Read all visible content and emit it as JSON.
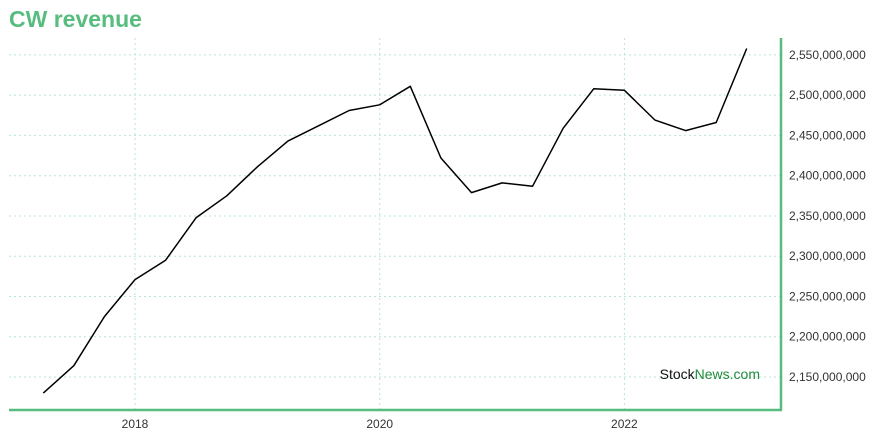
{
  "title": "CW revenue",
  "colors": {
    "accent": "#56bd7f",
    "grid": "#b9e6cc",
    "line": "#000000",
    "watermark_dark": "#111111",
    "watermark_green": "#1e8a3c"
  },
  "watermark": {
    "part1": "Stock",
    "part2": "News.com"
  },
  "chart_data": {
    "type": "line",
    "title": "CW revenue",
    "xlabel": "",
    "ylabel": "",
    "x_ticks": [
      "2018",
      "2020",
      "2022"
    ],
    "y_ticks": [
      2150000000,
      2200000000,
      2250000000,
      2300000000,
      2350000000,
      2400000000,
      2450000000,
      2500000000,
      2550000000
    ],
    "xlim": [
      2016.97,
      2023.28
    ],
    "ylim": [
      2109000000,
      2571000000
    ],
    "grid": true,
    "legend": "none",
    "y_axis_side": "right",
    "series": [
      {
        "x": [
          2017.25,
          2017.5,
          2017.75,
          2018.0,
          2018.25,
          2018.5,
          2018.75,
          2019.0,
          2019.25,
          2019.5,
          2019.75,
          2020.0,
          2020.25,
          2020.5,
          2020.75,
          2021.0,
          2021.25,
          2021.5,
          2021.75,
          2022.0,
          2022.25,
          2022.5,
          2022.75,
          2023.0
        ],
        "y": [
          2130000000,
          2164000000,
          2225000000,
          2271000000,
          2295000000,
          2348000000,
          2375000000,
          2411000000,
          2443000000,
          2462000000,
          2481000000,
          2488000000,
          2511000000,
          2422000000,
          2379000000,
          2391000000,
          2387000000,
          2459000000,
          2508000000,
          2506000000,
          2469000000,
          2456000000,
          2466000000,
          2558000000
        ]
      }
    ]
  }
}
